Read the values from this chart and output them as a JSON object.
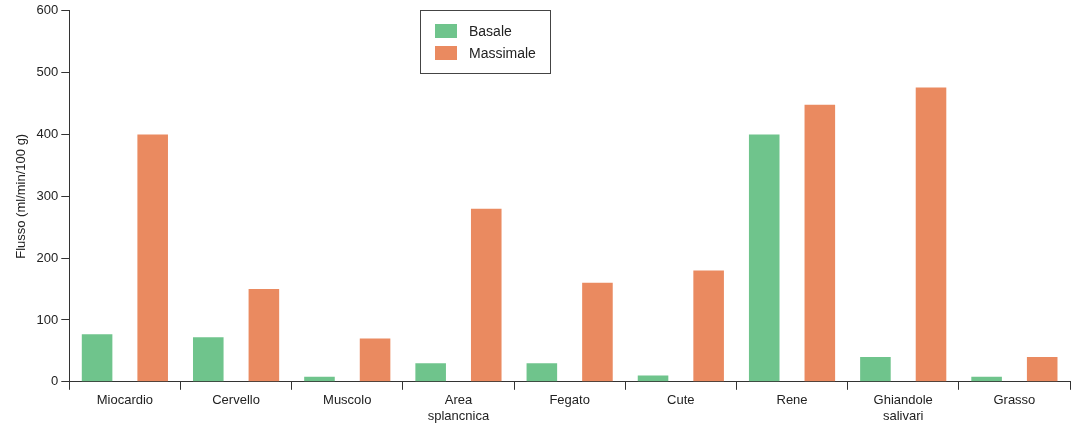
{
  "chart_data": {
    "type": "bar",
    "ylabel": "Flusso (ml/min/100 g)",
    "categories": [
      "Miocardio",
      "Cervello",
      "Muscolo",
      "Area\nsplancnica",
      "Fegato",
      "Cute",
      "Rene",
      "Ghiandole\nsalivari",
      "Grasso"
    ],
    "series": [
      {
        "name": "Basale",
        "color": "#6fc48c",
        "values": [
          77,
          72,
          8,
          30,
          30,
          10,
          400,
          40,
          8
        ]
      },
      {
        "name": "Massimale",
        "color": "#ea8a60",
        "values": [
          400,
          150,
          70,
          280,
          160,
          180,
          448,
          476,
          40
        ]
      }
    ],
    "ylim": [
      0,
      600
    ],
    "yticks": [
      0,
      100,
      200,
      300,
      400,
      500,
      600
    ],
    "grid": false,
    "legend": "top"
  }
}
